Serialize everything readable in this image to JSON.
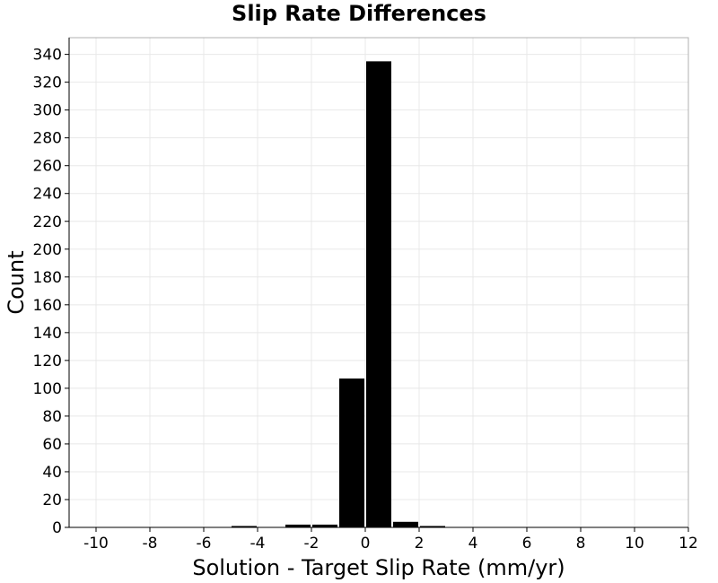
{
  "chart_data": {
    "type": "bar",
    "title": "Slip Rate Differences",
    "xlabel": "Solution - Target Slip Rate (mm/yr)",
    "ylabel": "Count",
    "xlim": [
      -11,
      12
    ],
    "ylim": [
      0,
      352
    ],
    "xticks": [
      -10,
      -8,
      -6,
      -4,
      -2,
      0,
      2,
      4,
      6,
      8,
      10,
      12
    ],
    "yticks": [
      0,
      20,
      40,
      60,
      80,
      100,
      120,
      140,
      160,
      180,
      200,
      220,
      240,
      260,
      280,
      300,
      320,
      340
    ],
    "bin_width": 1,
    "grid": true,
    "legend": "none",
    "bar_color": "#000000",
    "grid_color": "#e8e8e8",
    "bins": [
      {
        "center": -4.5,
        "count": 1
      },
      {
        "center": -2.5,
        "count": 2
      },
      {
        "center": -1.5,
        "count": 2
      },
      {
        "center": -0.5,
        "count": 107
      },
      {
        "center": 0.5,
        "count": 335
      },
      {
        "center": 1.5,
        "count": 4
      },
      {
        "center": 2.5,
        "count": 1
      }
    ]
  }
}
